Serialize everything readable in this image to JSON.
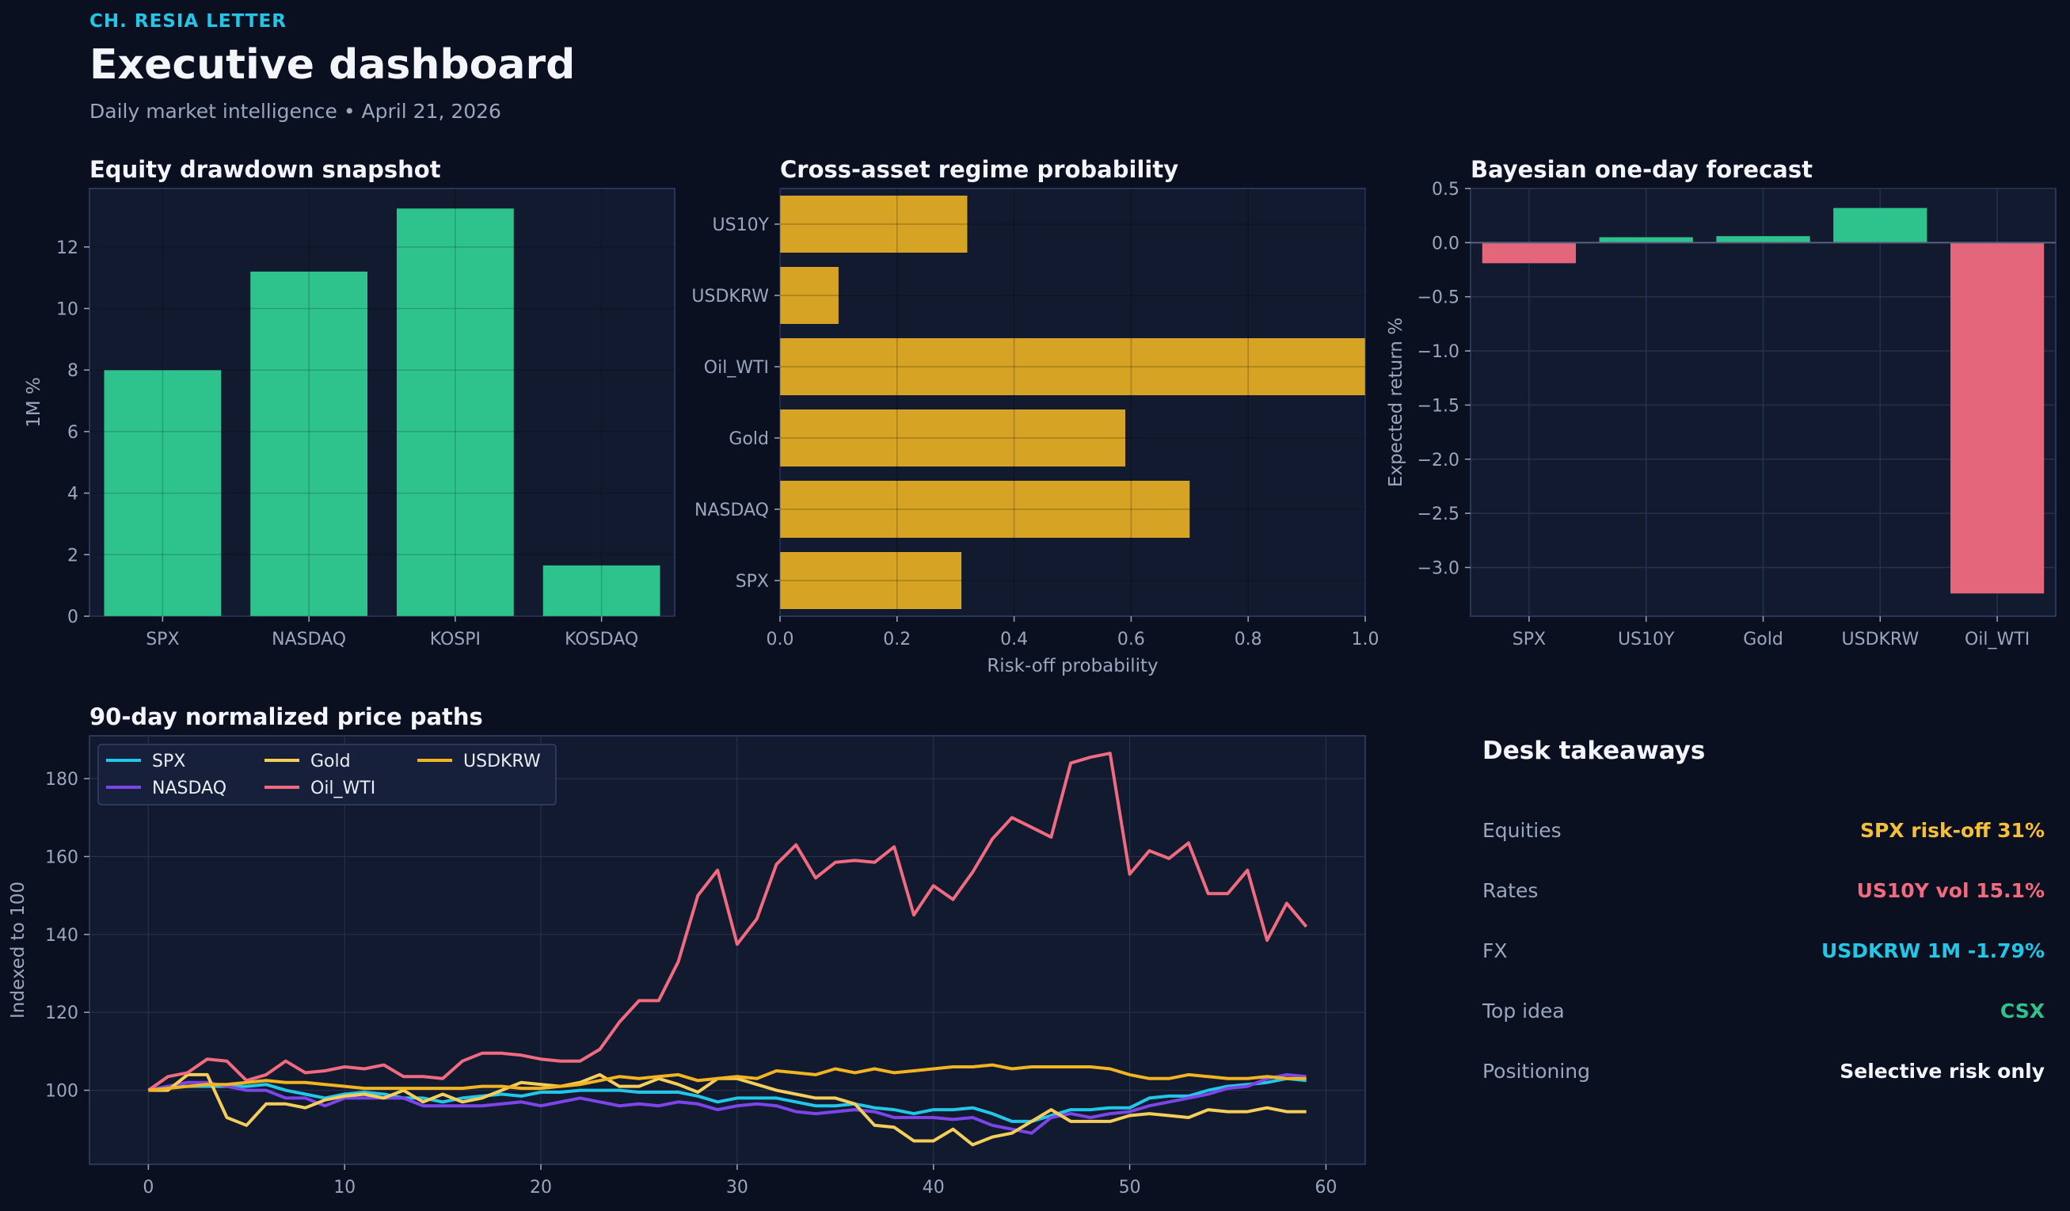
{
  "header": {
    "brand": "CH. RESIA LETTER",
    "title": "Executive dashboard",
    "subtitle": "Daily market intelligence • April 21, 2026"
  },
  "colors": {
    "background": "#0b1020",
    "panel": "#121a2f",
    "grid": "#26304a",
    "axis_text": "#9aa6bd",
    "green": "#2ec38d",
    "amber": "#d6a324",
    "red": "#e4667a",
    "cyan": "#22c7e8"
  },
  "chart_data": [
    {
      "id": "drawdown",
      "type": "bar",
      "title": "Equity drawdown snapshot",
      "xlabel": "",
      "ylabel": "1M %",
      "categories": [
        "SPX",
        "NASDAQ",
        "KOSPI",
        "KOSDAQ"
      ],
      "values": [
        8.0,
        11.2,
        13.25,
        1.65
      ],
      "ylim": [
        0,
        13.9
      ],
      "yticks": [
        0,
        2,
        4,
        6,
        8,
        10,
        12
      ],
      "grid": true
    },
    {
      "id": "regime",
      "type": "bar",
      "orientation": "horizontal",
      "title": "Cross-asset regime probability",
      "xlabel": "Risk-off probability",
      "ylabel": "",
      "categories": [
        "US10Y",
        "USDKRW",
        "Oil_WTI",
        "Gold",
        "NASDAQ",
        "SPX"
      ],
      "values": [
        0.32,
        0.1,
        1.0,
        0.59,
        0.7,
        0.31
      ],
      "xlim": [
        0,
        1
      ],
      "xticks": [
        "0.0",
        "0.2",
        "0.4",
        "0.6",
        "0.8",
        "1.0"
      ],
      "grid": true
    },
    {
      "id": "forecast",
      "type": "bar",
      "title": "Bayesian one-day forecast",
      "xlabel": "",
      "ylabel": "Expected return %",
      "categories": [
        "SPX",
        "US10Y",
        "Gold",
        "USDKRW",
        "Oil_WTI"
      ],
      "values": [
        -0.19,
        0.05,
        0.06,
        0.32,
        -3.24
      ],
      "ylim": [
        -3.45,
        0.5
      ],
      "yticks": [
        "0.5",
        "0.0",
        "−0.5",
        "−1.0",
        "−1.5",
        "−2.0",
        "−2.5",
        "−3.0"
      ],
      "grid": true
    },
    {
      "id": "paths",
      "type": "line",
      "title": "90-day normalized price paths",
      "xlabel": "",
      "ylabel": "Indexed to 100",
      "xlim": [
        -3,
        62
      ],
      "ylim": [
        81,
        191
      ],
      "xticks": [
        0,
        10,
        20,
        30,
        40,
        50,
        60
      ],
      "yticks": [
        100,
        120,
        140,
        160,
        180
      ],
      "legend": "top-left",
      "grid": true,
      "series": [
        {
          "name": "SPX",
          "color": "#22c7e8",
          "values": [
            100,
            101,
            101,
            101,
            101,
            101,
            101.5,
            100,
            99,
            98,
            99,
            99.5,
            99,
            98,
            98,
            97,
            98,
            98.5,
            99,
            98.5,
            99.5,
            99.5,
            100,
            100,
            100,
            99.5,
            99.5,
            99.5,
            98.5,
            97,
            98,
            98,
            98,
            97,
            96,
            96,
            96.5,
            95.5,
            95,
            94,
            95,
            95,
            95.5,
            94,
            92,
            92,
            93.5,
            95,
            95,
            95.5,
            95.5,
            98,
            98.5,
            98.5,
            100,
            101,
            101.5,
            102,
            103,
            102.5
          ]
        },
        {
          "name": "NASDAQ",
          "color": "#7b45e8",
          "values": [
            100,
            101,
            102,
            102,
            101,
            100,
            100,
            98,
            98,
            96,
            98,
            98,
            98,
            98,
            96,
            96,
            96,
            96,
            96.5,
            97,
            96,
            97,
            98,
            97,
            96,
            96.5,
            96,
            97,
            96.5,
            95,
            96,
            96.5,
            96,
            94.5,
            94,
            94.5,
            95,
            94.5,
            93,
            93,
            93,
            92.5,
            93,
            91,
            90,
            89,
            93,
            94,
            93,
            94,
            94.5,
            96,
            97,
            98,
            99,
            100.5,
            101,
            103,
            104,
            103.5
          ]
        },
        {
          "name": "Gold",
          "color": "#f5ce5a",
          "values": [
            100,
            100,
            104,
            104,
            93,
            91,
            96.5,
            96.5,
            95.5,
            97.5,
            98.5,
            99,
            98,
            100,
            97,
            99,
            97,
            98,
            100,
            102,
            101.5,
            101,
            102,
            104,
            101,
            101,
            103,
            101.5,
            99.5,
            103,
            103,
            101.5,
            100,
            99,
            98,
            98,
            96.5,
            91,
            90.5,
            87,
            87,
            90,
            86,
            88,
            89,
            92,
            95,
            92,
            92,
            92,
            93.5,
            94,
            93.5,
            93,
            95,
            94.5,
            94.5,
            95.5,
            94.5,
            94.5
          ]
        },
        {
          "name": "Oil_WTI",
          "color": "#f06b80",
          "values": [
            100,
            103.5,
            104.5,
            108,
            107.5,
            102.5,
            104,
            107.5,
            104.5,
            105,
            106,
            105.5,
            106.5,
            103.5,
            103.5,
            103,
            107.5,
            109.5,
            109.5,
            109,
            108,
            107.5,
            107.5,
            110.5,
            117.5,
            123,
            123,
            133,
            150,
            156.5,
            137.5,
            144,
            158,
            163,
            154.5,
            158.5,
            159,
            158.5,
            162.5,
            145,
            152.5,
            149,
            156,
            164.5,
            170,
            167.5,
            165,
            184,
            185.5,
            186.5,
            155.5,
            161.5,
            159.5,
            163.5,
            150.5,
            150.5,
            156.5,
            138.5,
            148,
            142
          ]
        },
        {
          "name": "USDKRW",
          "color": "#f2b420",
          "values": [
            100,
            100.5,
            101,
            101.5,
            101.5,
            102,
            102.5,
            102,
            102,
            101.5,
            101,
            100.5,
            100.5,
            100.5,
            100.5,
            100.5,
            100.5,
            101,
            101,
            100.5,
            100.5,
            101,
            101.5,
            102.5,
            103.5,
            103,
            103.5,
            104,
            102.5,
            103,
            103.5,
            103,
            105,
            104.5,
            104,
            105.5,
            104.5,
            105.5,
            104.5,
            105,
            105.5,
            106,
            106,
            106.5,
            105.5,
            106,
            106,
            106,
            106,
            105.5,
            104,
            103,
            103,
            104,
            103.5,
            103,
            103,
            103.5,
            103,
            103
          ]
        }
      ]
    }
  ],
  "takeaways": {
    "title": "Desk takeaways",
    "rows": [
      {
        "label": "Equities",
        "value": "SPX risk-off 31%",
        "color": "#f5bf3a"
      },
      {
        "label": "Rates",
        "value": "US10Y vol 15.1%",
        "color": "#f06b80"
      },
      {
        "label": "FX",
        "value": "USDKRW 1M -1.79%",
        "color": "#22c7e8"
      },
      {
        "label": "Top idea",
        "value": "CSX",
        "color": "#2ec38d"
      },
      {
        "label": "Positioning",
        "value": "Selective risk only",
        "color": "#f3f5fa"
      }
    ]
  }
}
